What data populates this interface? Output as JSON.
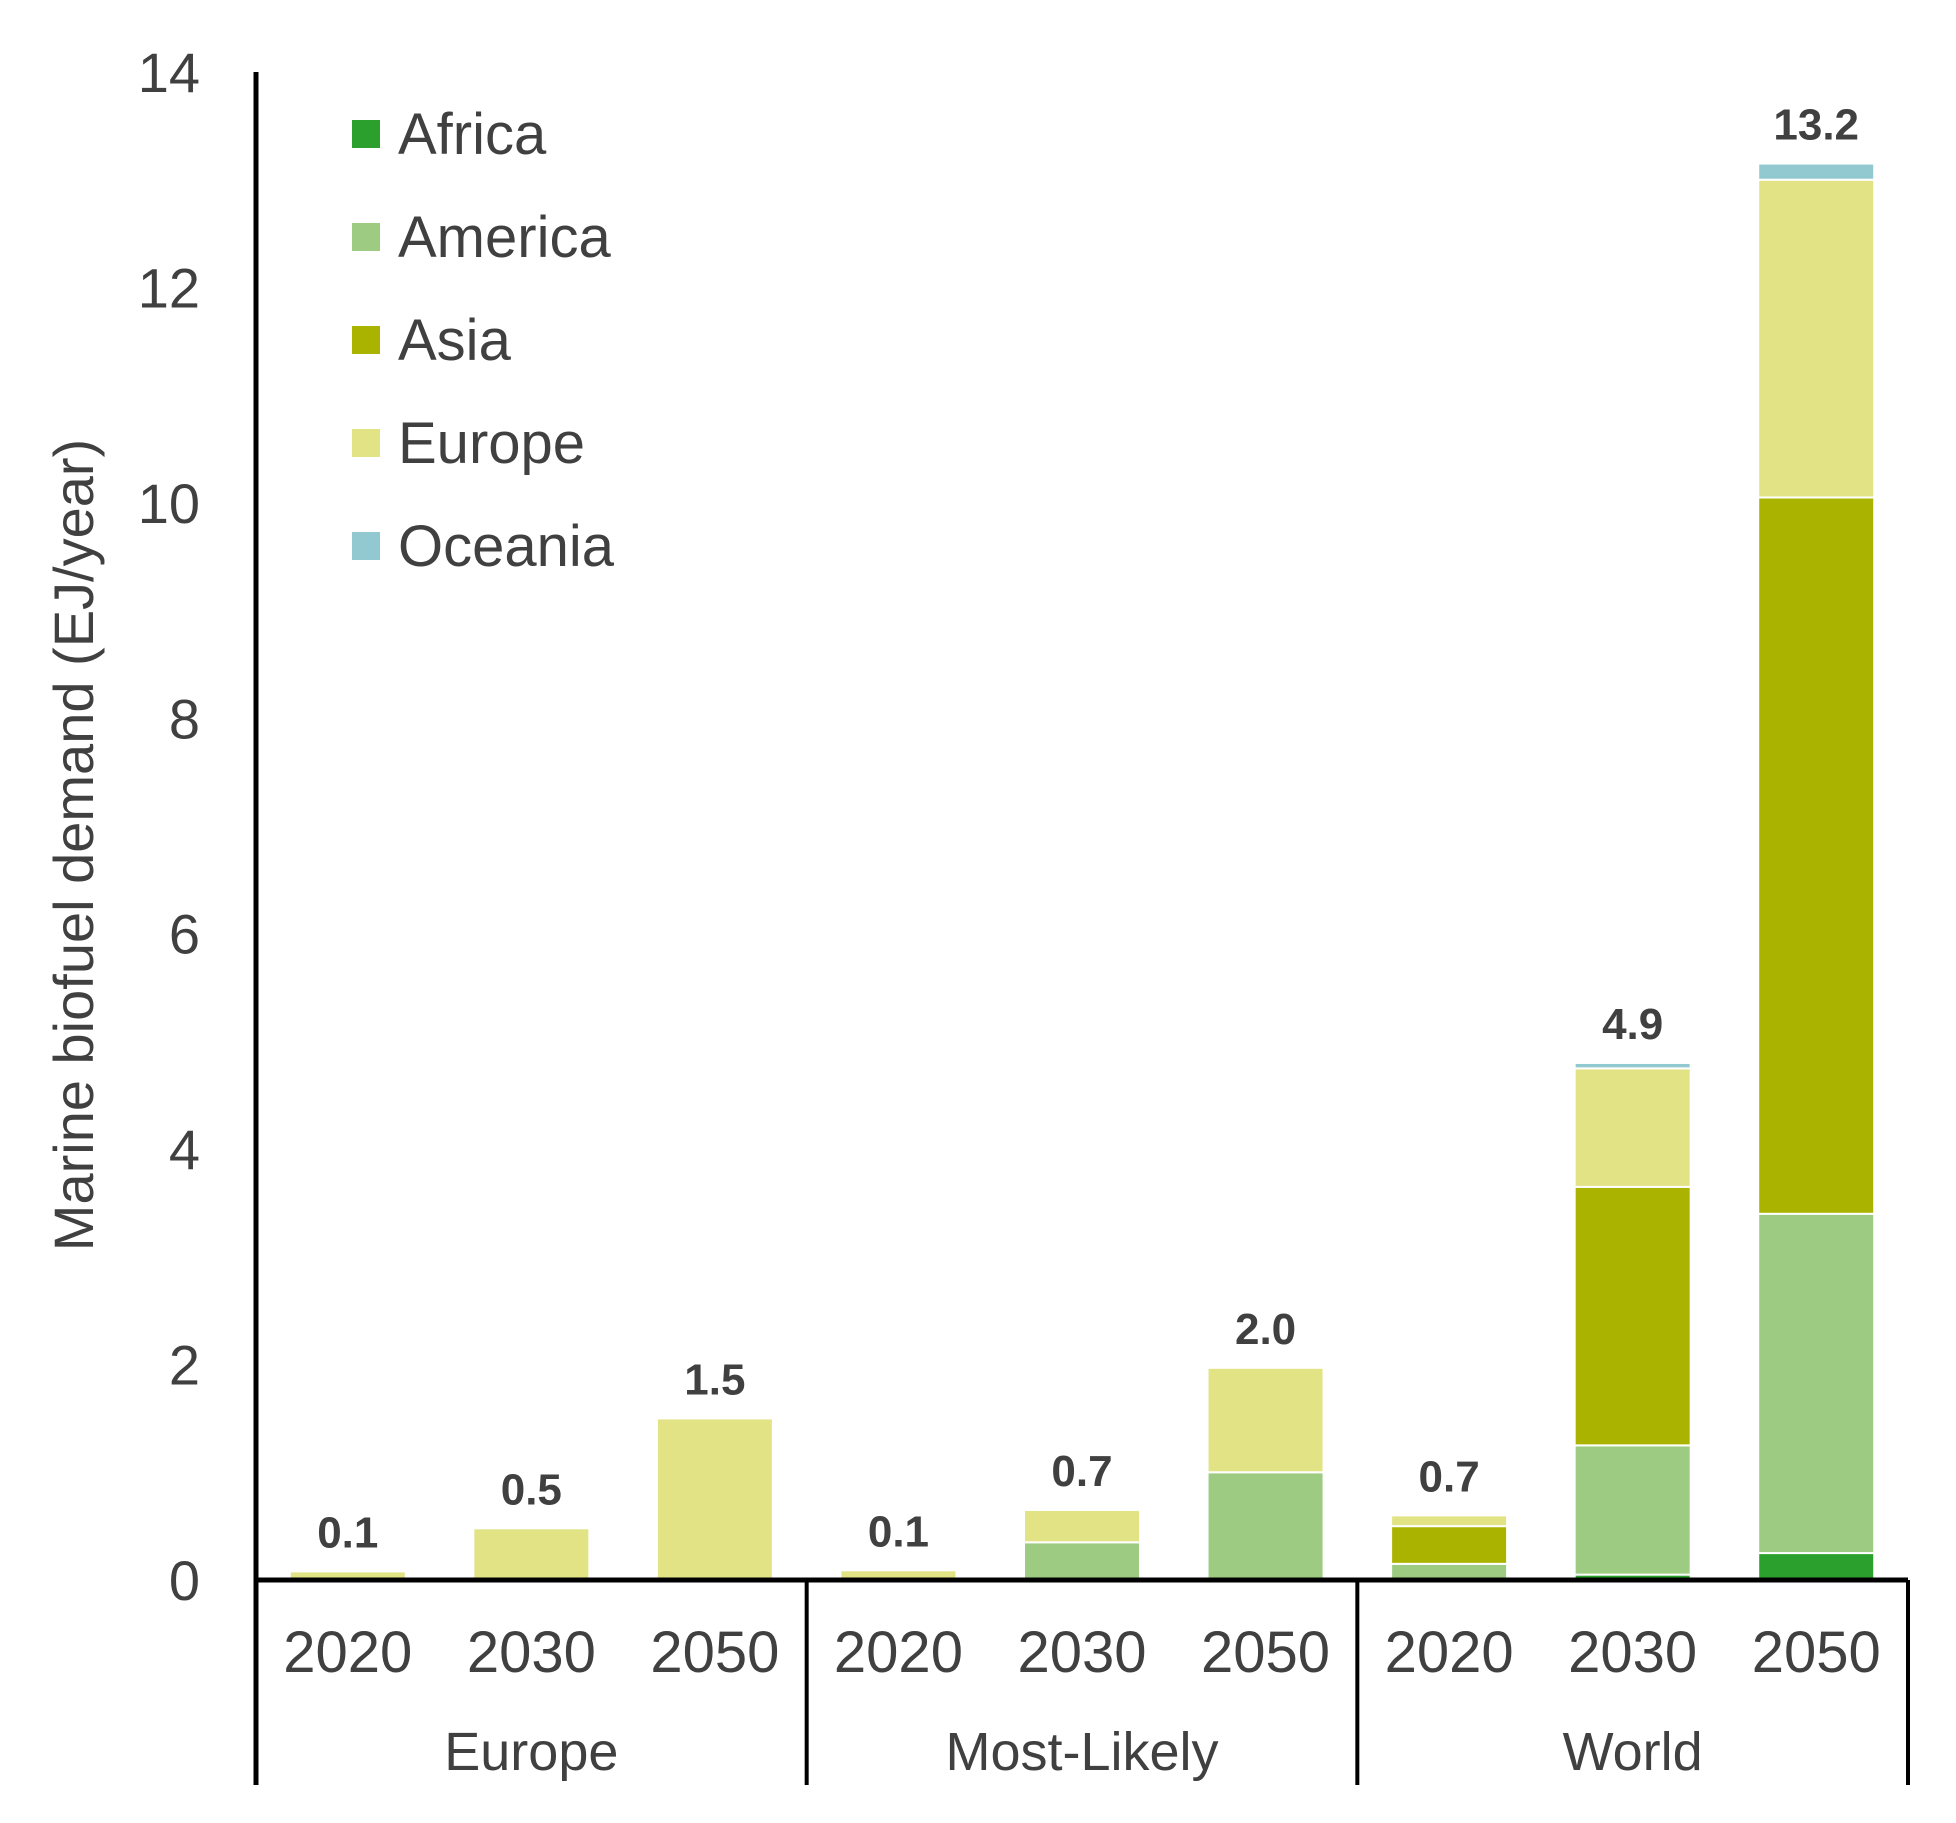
{
  "chart_data": {
    "type": "bar",
    "stacked": true,
    "ylabel": "Marine biofuel demand (EJ/year)",
    "ylim": [
      0,
      14
    ],
    "yticks": [
      "0",
      "2",
      "4",
      "6",
      "8",
      "10",
      "12",
      "14"
    ],
    "legend_position": "top-left",
    "groups": [
      {
        "name": "Europe",
        "categories": [
          "2020",
          "2030",
          "2050"
        ]
      },
      {
        "name": "Most-Likely",
        "categories": [
          "2020",
          "2030",
          "2050"
        ]
      },
      {
        "name": "World",
        "categories": [
          "2020",
          "2030",
          "2050"
        ]
      }
    ],
    "series": [
      {
        "name": "Africa",
        "color": "#2ca02c",
        "values": [
          0,
          0,
          0,
          0,
          0,
          0,
          0,
          0.05,
          0.25
        ]
      },
      {
        "name": "America",
        "color": "#9dcb81",
        "values": [
          0,
          0,
          0,
          0,
          0.35,
          1.0,
          0.15,
          1.2,
          3.15
        ]
      },
      {
        "name": "Asia",
        "color": "#aab400",
        "values": [
          0,
          0,
          0,
          0,
          0,
          0,
          0.35,
          2.4,
          6.65
        ]
      },
      {
        "name": "Europe",
        "color": "#e2e385",
        "values": [
          0.08,
          0.48,
          1.5,
          0.09,
          0.3,
          0.97,
          0.1,
          1.1,
          2.95
        ]
      },
      {
        "name": "Oceania",
        "color": "#92c9d1",
        "values": [
          0,
          0,
          0,
          0,
          0,
          0,
          0,
          0.05,
          0.15
        ]
      }
    ],
    "totals": [
      "0.1",
      "0.5",
      "1.5",
      "0.1",
      "0.7",
      "2.0",
      "0.7",
      "4.9",
      "13.2"
    ]
  }
}
